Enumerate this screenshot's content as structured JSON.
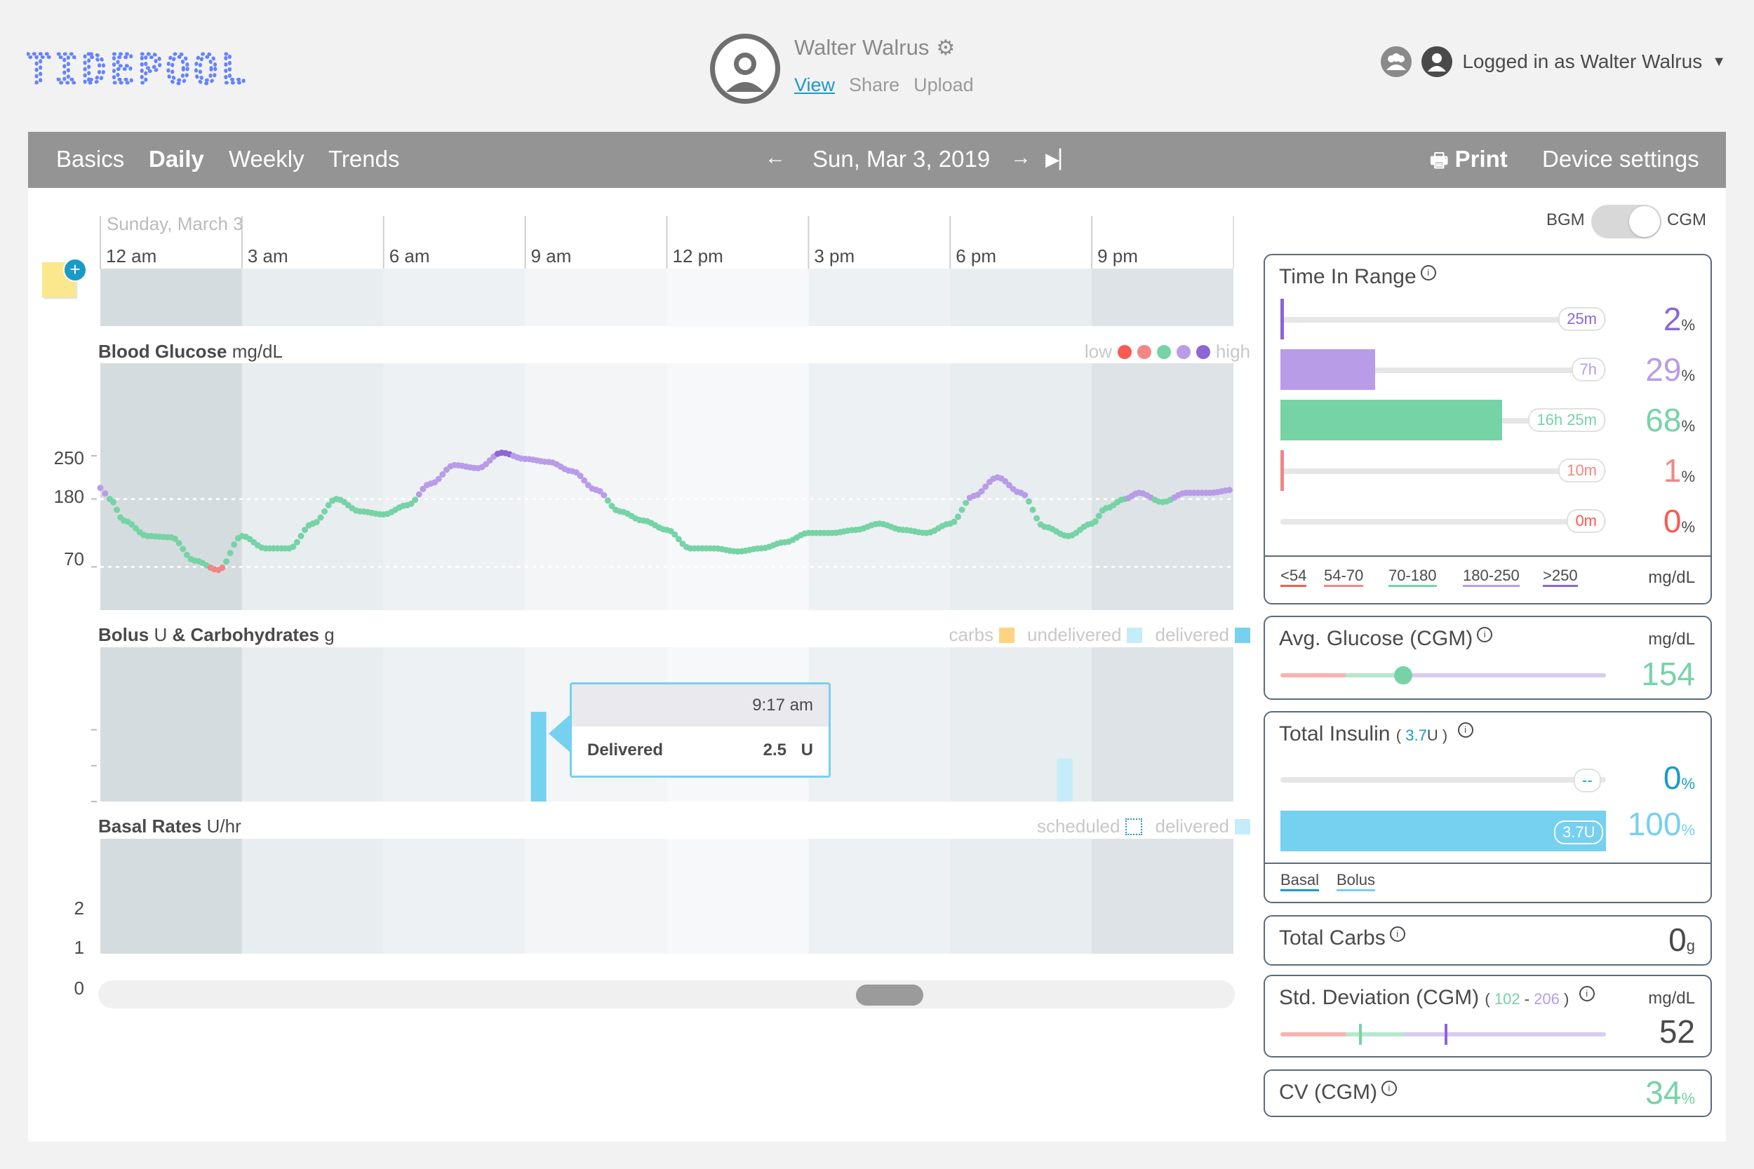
{
  "header": {
    "logo_text": "TIDEPOOL",
    "patient_name": "Walter Walrus",
    "links": [
      "View",
      "Share",
      "Upload"
    ],
    "login_text": "Logged in as Walter Walrus"
  },
  "nav": {
    "tabs": [
      "Basics",
      "Daily",
      "Weekly",
      "Trends"
    ],
    "active_tab": "Daily",
    "date": "Sun, Mar 3, 2019",
    "print_label": "Print",
    "device_settings_label": "Device settings"
  },
  "daily": {
    "date_label": "Sunday, March 3",
    "hours": [
      "12 am",
      "3 am",
      "6 am",
      "9 am",
      "12 pm",
      "3 pm",
      "6 pm",
      "9 pm"
    ],
    "bg": {
      "title": "Blood Glucose",
      "unit": "mg/dL",
      "legend_low": "low",
      "legend_high": "high",
      "yticks": [
        "250",
        "180",
        "70"
      ]
    },
    "bolus": {
      "title": "Bolus",
      "unit": "U",
      "amp": "&",
      "title2": "Carbohydrates",
      "unit2": "g",
      "legend": [
        "carbs",
        "undelivered",
        "delivered"
      ],
      "yticks": [
        "2",
        "1",
        "0"
      ],
      "tooltip_time": "9:17 am",
      "tooltip_label": "Delivered",
      "tooltip_value": "2.5",
      "tooltip_unit": "U"
    },
    "basal": {
      "title": "Basal Rates",
      "unit": "U/hr",
      "legend": [
        "scheduled",
        "delivered"
      ]
    }
  },
  "stats": {
    "toggle": {
      "left": "BGM",
      "right": "CGM"
    },
    "time_in_range": {
      "title": "Time In Range",
      "rows": [
        {
          "duration": "25m",
          "percent": "2",
          "fraction": 0.02,
          "color": "#8c65d6"
        },
        {
          "duration": "7h",
          "percent": "29",
          "fraction": 0.29,
          "color": "#b89ce8"
        },
        {
          "duration": "16h 25m",
          "percent": "68",
          "fraction": 0.68,
          "color": "#76d3a6"
        },
        {
          "duration": "10m",
          "percent": "1",
          "fraction": 0.01,
          "color": "#f28684"
        },
        {
          "duration": "0m",
          "percent": "0",
          "fraction": 0.0,
          "color": "#fb5951"
        }
      ],
      "ranges": [
        "<54",
        "54-70",
        "70-180",
        "180-250",
        ">250"
      ],
      "unit": "mg/dL"
    },
    "avg_glucose": {
      "title": "Avg. Glucose (CGM)",
      "unit": "mg/dL",
      "value": "154"
    },
    "total_insulin": {
      "title": "Total Insulin",
      "total": "3.7",
      "total_unit": "U",
      "basal_pill": "--",
      "basal_percent": "0",
      "bolus_pill": "3.7U",
      "bolus_percent": "100",
      "legend": [
        "Basal",
        "Bolus"
      ]
    },
    "total_carbs": {
      "title": "Total Carbs",
      "value": "0",
      "unit": "g"
    },
    "std_dev": {
      "title": "Std. Deviation (CGM)",
      "low": "102",
      "dash": "-",
      "high": "206",
      "unit": "mg/dL",
      "value": "52"
    },
    "cv": {
      "title": "CV (CGM)",
      "value": "34"
    }
  },
  "colors": {
    "veryLow": "#fb5951",
    "low": "#f28684",
    "target": "#76d3a6",
    "high": "#b89ce8",
    "veryHigh": "#8c65d6",
    "bolus": "#76d0ef",
    "link": "#1a9bc7",
    "nav": "#949494"
  },
  "chart_data": {
    "type": "line",
    "title": "Blood Glucose",
    "ylabel": "mg/dL",
    "ylim": [
      0,
      400
    ],
    "x_unit": "hours",
    "thresholds": [
      70,
      180
    ],
    "x": [
      0.0,
      0.2,
      0.5,
      1.0,
      1.5,
      2.0,
      2.5,
      3.0,
      3.5,
      4.0,
      4.5,
      5.0,
      5.5,
      6.0,
      6.5,
      7.0,
      7.5,
      8.0,
      8.5,
      9.0,
      9.5,
      10.0,
      10.5,
      11.0,
      11.5,
      12.0,
      12.5,
      13.0,
      13.5,
      14.0,
      14.5,
      15.0,
      15.5,
      16.0,
      16.5,
      17.0,
      17.5,
      18.0,
      18.5,
      19.0,
      19.5,
      20.0,
      20.5,
      21.0,
      21.3,
      21.7,
      22.0,
      22.5,
      23.0,
      23.5,
      24.0
    ],
    "y": [
      198,
      180,
      145,
      120,
      118,
      80,
      65,
      120,
      100,
      100,
      140,
      180,
      160,
      155,
      170,
      205,
      235,
      230,
      255,
      245,
      240,
      225,
      195,
      160,
      145,
      130,
      100,
      100,
      95,
      100,
      110,
      125,
      125,
      130,
      140,
      130,
      125,
      140,
      185,
      215,
      190,
      135,
      120,
      140,
      165,
      180,
      190,
      175,
      190,
      190,
      195
    ]
  }
}
